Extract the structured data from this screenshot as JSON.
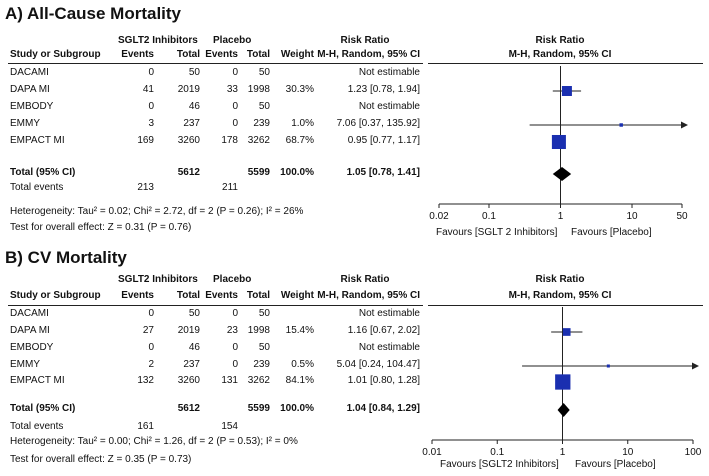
{
  "chart_data": [
    {
      "type": "forest",
      "title": "A) All-Cause Mortality",
      "columns": {
        "group1": "SGLT2 Inhibitors",
        "group2": "Placebo",
        "study": "Study or Subgroup",
        "events": "Events",
        "total": "Total",
        "weight": "Weight",
        "rr_title": "Risk Ratio",
        "rr_method": "M-H, Random, 95% CI"
      },
      "studies": [
        {
          "name": "DACAMI",
          "e1": "0",
          "t1": "50",
          "e2": "0",
          "t2": "50",
          "weight": "",
          "ci_text": "Not estimable",
          "rr": null,
          "lo": null,
          "hi": null
        },
        {
          "name": "DAPA MI",
          "e1": "41",
          "t1": "2019",
          "e2": "33",
          "t2": "1998",
          "weight": "30.3%",
          "ci_text": "1.23 [0.78, 1.94]",
          "rr": 1.23,
          "lo": 0.78,
          "hi": 1.94
        },
        {
          "name": "EMBODY",
          "e1": "0",
          "t1": "46",
          "e2": "0",
          "t2": "50",
          "weight": "",
          "ci_text": "Not estimable",
          "rr": null,
          "lo": null,
          "hi": null
        },
        {
          "name": "EMMY",
          "e1": "3",
          "t1": "237",
          "e2": "0",
          "t2": "239",
          "weight": "1.0%",
          "ci_text": "7.06 [0.37, 135.92]",
          "rr": 7.06,
          "lo": 0.37,
          "hi": 135.92
        },
        {
          "name": "EMPACT MI",
          "e1": "169",
          "t1": "3260",
          "e2": "178",
          "t2": "3262",
          "weight": "68.7%",
          "ci_text": "0.95 [0.77, 1.17]",
          "rr": 0.95,
          "lo": 0.77,
          "hi": 1.17
        }
      ],
      "total": {
        "label": "Total (95% CI)",
        "t1": "5612",
        "t2": "5599",
        "weight": "100.0%",
        "ci_text": "1.05 [0.78, 1.41]",
        "rr": 1.05,
        "lo": 0.78,
        "hi": 1.41
      },
      "total_events": {
        "label": "Total events",
        "e1": "213",
        "e2": "211"
      },
      "heterogeneity": "Heterogeneity: Tau² = 0.02; Chi² = 2.72, df = 2 (P = 0.26); I² = 26%",
      "overall_effect": "Test for overall effect: Z = 0.31 (P = 0.76)",
      "axis": {
        "scale": "log",
        "min": 0.02,
        "max": 50,
        "ticks": [
          0.02,
          0.1,
          1,
          10,
          50
        ],
        "tick_labels": [
          "0.02",
          "0.1",
          "1",
          "10",
          "50"
        ]
      },
      "favours_left": "Favours [SGLT 2 Inhibitors]",
      "favours_right": "Favours [Placebo]"
    },
    {
      "type": "forest",
      "title": "B) CV Mortality",
      "columns": {
        "group1": "SGLT2 Inhibitors",
        "group2": "Placebo",
        "study": "Study or Subgroup",
        "events": "Events",
        "total": "Total",
        "weight": "Weight",
        "rr_title": "Risk Ratio",
        "rr_method": "M-H, Random, 95% CI"
      },
      "studies": [
        {
          "name": "DACAMI",
          "e1": "0",
          "t1": "50",
          "e2": "0",
          "t2": "50",
          "weight": "",
          "ci_text": "Not estimable",
          "rr": null,
          "lo": null,
          "hi": null
        },
        {
          "name": "DAPA MI",
          "e1": "27",
          "t1": "2019",
          "e2": "23",
          "t2": "1998",
          "weight": "15.4%",
          "ci_text": "1.16 [0.67, 2.02]",
          "rr": 1.16,
          "lo": 0.67,
          "hi": 2.02
        },
        {
          "name": "EMBODY",
          "e1": "0",
          "t1": "46",
          "e2": "0",
          "t2": "50",
          "weight": "",
          "ci_text": "Not estimable",
          "rr": null,
          "lo": null,
          "hi": null
        },
        {
          "name": "EMMY",
          "e1": "2",
          "t1": "237",
          "e2": "0",
          "t2": "239",
          "weight": "0.5%",
          "ci_text": "5.04 [0.24, 104.47]",
          "rr": 5.04,
          "lo": 0.24,
          "hi": 104.47
        },
        {
          "name": "EMPACT MI",
          "e1": "132",
          "t1": "3260",
          "e2": "131",
          "t2": "3262",
          "weight": "84.1%",
          "ci_text": "1.01 [0.80, 1.28]",
          "rr": 1.01,
          "lo": 0.8,
          "hi": 1.28
        }
      ],
      "total": {
        "label": "Total (95% CI)",
        "t1": "5612",
        "t2": "5599",
        "weight": "100.0%",
        "ci_text": "1.04 [0.84, 1.29]",
        "rr": 1.04,
        "lo": 0.84,
        "hi": 1.29
      },
      "total_events": {
        "label": "Total events",
        "e1": "161",
        "e2": "154"
      },
      "heterogeneity": "Heterogeneity: Tau² = 0.00; Chi² = 1.26, df = 2 (P = 0.53); I² = 0%",
      "overall_effect": "Test for overall effect: Z = 0.35 (P = 0.73)",
      "axis": {
        "scale": "log",
        "min": 0.01,
        "max": 100,
        "ticks": [
          0.01,
          0.1,
          1,
          10,
          100
        ],
        "tick_labels": [
          "0.01",
          "0.1",
          "1",
          "10",
          "100"
        ]
      },
      "favours_left": "Favours [SGLT2 Inhibitors]",
      "favours_right": "Favours [Placebo]"
    }
  ]
}
